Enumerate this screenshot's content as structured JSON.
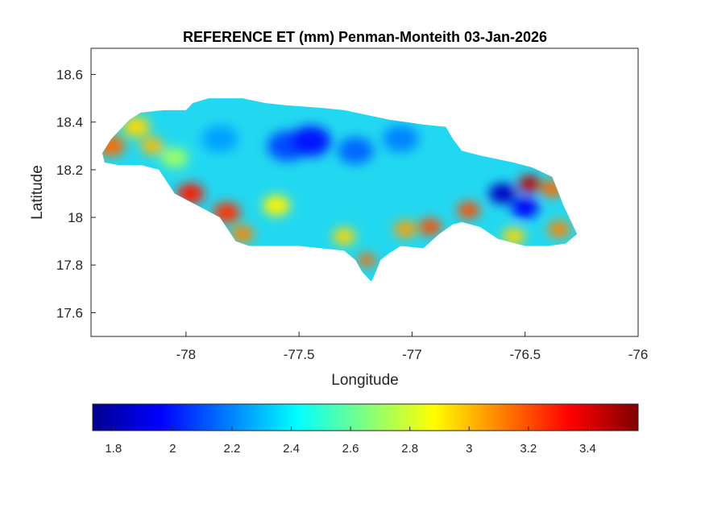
{
  "chart_data": {
    "type": "heatmap",
    "title": "REFERENCE ET (mm) Penman-Monteith 03-Jan-2026",
    "xlabel": "Longitude",
    "ylabel": "Latitude",
    "xlim": [
      -78.42,
      -76.0
    ],
    "ylim": [
      17.5,
      18.71
    ],
    "xticks": [
      -78,
      -77.5,
      -77,
      -76.5,
      -76
    ],
    "xtick_labels": [
      "-78",
      "-77.5",
      "-77",
      "-76.5",
      "-76"
    ],
    "yticks": [
      17.6,
      17.8,
      18.0,
      18.2,
      18.4,
      18.6
    ],
    "ytick_labels": [
      "17.6",
      "17.8",
      "18",
      "18.2",
      "18.4",
      "18.6"
    ],
    "colorbar": {
      "orientation": "horizontal",
      "colormap": "jet",
      "range": [
        1.73,
        3.57
      ],
      "ticks": [
        1.8,
        2.0,
        2.2,
        2.4,
        2.6,
        2.8,
        3.0,
        3.2,
        3.4
      ],
      "tick_labels": [
        "1.8",
        "2",
        "2.2",
        "2.4",
        "2.6",
        "2.8",
        "3",
        "3.2",
        "3.4"
      ]
    },
    "grid": false,
    "outline": [
      [
        -78.37,
        18.27
      ],
      [
        -78.33,
        18.33
      ],
      [
        -78.25,
        18.41
      ],
      [
        -78.2,
        18.44
      ],
      [
        -78.1,
        18.45
      ],
      [
        -78.0,
        18.45
      ],
      [
        -77.97,
        18.48
      ],
      [
        -77.9,
        18.5
      ],
      [
        -77.75,
        18.5
      ],
      [
        -77.65,
        18.48
      ],
      [
        -77.55,
        18.47
      ],
      [
        -77.4,
        18.46
      ],
      [
        -77.3,
        18.45
      ],
      [
        -77.1,
        18.41
      ],
      [
        -76.95,
        18.39
      ],
      [
        -76.85,
        18.38
      ],
      [
        -76.82,
        18.33
      ],
      [
        -76.78,
        18.28
      ],
      [
        -76.7,
        18.26
      ],
      [
        -76.55,
        18.23
      ],
      [
        -76.47,
        18.21
      ],
      [
        -76.38,
        18.17
      ],
      [
        -76.33,
        18.05
      ],
      [
        -76.27,
        17.93
      ],
      [
        -76.32,
        17.89
      ],
      [
        -76.4,
        17.88
      ],
      [
        -76.5,
        17.88
      ],
      [
        -76.62,
        17.91
      ],
      [
        -76.7,
        17.96
      ],
      [
        -76.78,
        17.98
      ],
      [
        -76.82,
        17.97
      ],
      [
        -76.88,
        17.93
      ],
      [
        -76.95,
        17.87
      ],
      [
        -77.05,
        17.88
      ],
      [
        -77.1,
        17.85
      ],
      [
        -77.14,
        17.82
      ],
      [
        -77.16,
        17.77
      ],
      [
        -77.18,
        17.73
      ],
      [
        -77.22,
        17.77
      ],
      [
        -77.25,
        17.82
      ],
      [
        -77.3,
        17.86
      ],
      [
        -77.4,
        17.87
      ],
      [
        -77.5,
        17.88
      ],
      [
        -77.6,
        17.88
      ],
      [
        -77.72,
        17.88
      ],
      [
        -77.78,
        17.9
      ],
      [
        -77.85,
        18.0
      ],
      [
        -77.95,
        18.05
      ],
      [
        -78.05,
        18.1
      ],
      [
        -78.12,
        18.2
      ],
      [
        -78.2,
        18.22
      ],
      [
        -78.3,
        18.22
      ],
      [
        -78.36,
        18.23
      ]
    ],
    "field": [
      {
        "lon": -78.33,
        "lat": 18.3,
        "value": 3.15,
        "r": 0.06
      },
      {
        "lon": -78.22,
        "lat": 18.38,
        "value": 2.95,
        "r": 0.06
      },
      {
        "lon": -78.15,
        "lat": 18.3,
        "value": 3.0,
        "r": 0.05
      },
      {
        "lon": -78.05,
        "lat": 18.25,
        "value": 2.7,
        "r": 0.06
      },
      {
        "lon": -77.98,
        "lat": 18.1,
        "value": 3.3,
        "r": 0.06
      },
      {
        "lon": -77.82,
        "lat": 18.02,
        "value": 3.25,
        "r": 0.06
      },
      {
        "lon": -77.75,
        "lat": 17.93,
        "value": 3.1,
        "r": 0.05
      },
      {
        "lon": -77.6,
        "lat": 18.05,
        "value": 2.9,
        "r": 0.06
      },
      {
        "lon": -77.55,
        "lat": 18.3,
        "value": 2.1,
        "r": 0.09
      },
      {
        "lon": -77.45,
        "lat": 18.32,
        "value": 2.0,
        "r": 0.09
      },
      {
        "lon": -77.25,
        "lat": 18.28,
        "value": 2.15,
        "r": 0.08
      },
      {
        "lon": -77.05,
        "lat": 18.33,
        "value": 2.2,
        "r": 0.08
      },
      {
        "lon": -77.85,
        "lat": 18.33,
        "value": 2.25,
        "r": 0.08
      },
      {
        "lon": -77.3,
        "lat": 17.92,
        "value": 2.95,
        "r": 0.05
      },
      {
        "lon": -77.2,
        "lat": 17.82,
        "value": 3.15,
        "r": 0.04
      },
      {
        "lon": -77.03,
        "lat": 17.95,
        "value": 3.05,
        "r": 0.05
      },
      {
        "lon": -76.92,
        "lat": 17.96,
        "value": 3.2,
        "r": 0.05
      },
      {
        "lon": -76.75,
        "lat": 18.03,
        "value": 3.2,
        "r": 0.05
      },
      {
        "lon": -76.6,
        "lat": 18.1,
        "value": 1.85,
        "r": 0.06
      },
      {
        "lon": -76.5,
        "lat": 18.04,
        "value": 1.95,
        "r": 0.06
      },
      {
        "lon": -76.48,
        "lat": 18.14,
        "value": 3.45,
        "r": 0.05
      },
      {
        "lon": -76.38,
        "lat": 18.12,
        "value": 3.15,
        "r": 0.05
      },
      {
        "lon": -76.35,
        "lat": 17.95,
        "value": 3.1,
        "r": 0.05
      },
      {
        "lon": -76.55,
        "lat": 17.92,
        "value": 2.95,
        "r": 0.05
      }
    ]
  }
}
